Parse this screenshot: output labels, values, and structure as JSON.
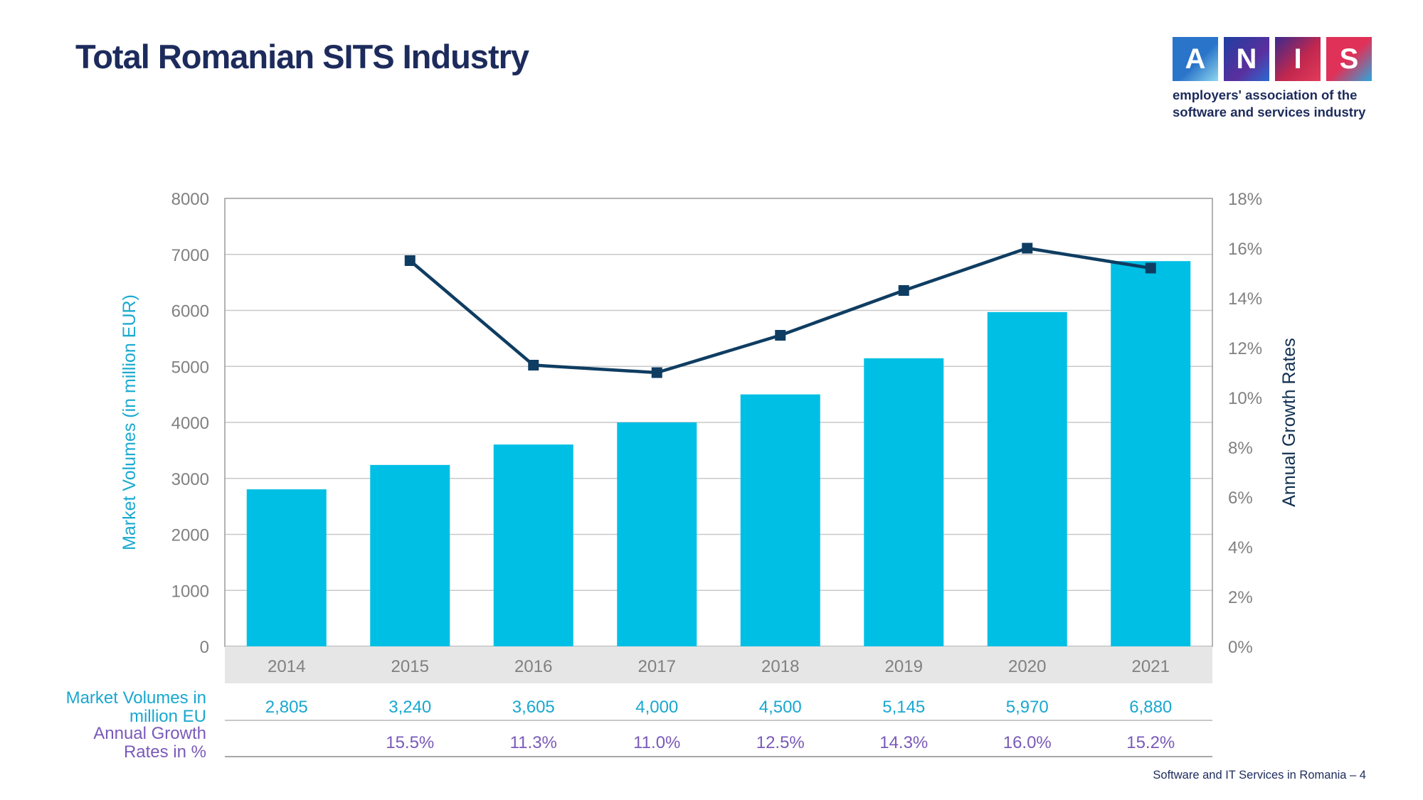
{
  "page": {
    "title": "Total Romanian SITS Industry",
    "footer": "Software and IT Services in Romania – 4"
  },
  "logo": {
    "letters": [
      "A",
      "N",
      "I",
      "S"
    ],
    "tagline_line1": "employers' association of the",
    "tagline_line2": "software and services industry"
  },
  "colors": {
    "bar": "#00bfe4",
    "line": "#0f3d62",
    "title": "#1d2b5c",
    "left_axis_label": "#1aaad0",
    "right_axis_label": "#0f2e4f",
    "table_volume_text": "#19a7d0",
    "table_growth_text": "#7a5ab8",
    "grid": "#c9c9c9",
    "tick_text": "#808080",
    "category_band": "#e6e6e6"
  },
  "chart_data": {
    "type": "bar",
    "categories": [
      "2014",
      "2015",
      "2016",
      "2017",
      "2018",
      "2019",
      "2020",
      "2021"
    ],
    "series": [
      {
        "kind": "bar",
        "axis": "left",
        "values": [
          2805,
          3240,
          3605,
          4000,
          4500,
          5145,
          5970,
          6880
        ]
      },
      {
        "kind": "line",
        "axis": "right",
        "values": [
          null,
          15.5,
          11.3,
          11.0,
          12.5,
          14.3,
          16.0,
          15.2
        ]
      }
    ],
    "y_left": {
      "label": "Market Volumes (in million EUR)",
      "range": [
        0,
        8000
      ],
      "ticks": [
        "0",
        "1000",
        "2000",
        "3000",
        "4000",
        "5000",
        "6000",
        "7000",
        "8000"
      ]
    },
    "y_right": {
      "label": "Annual Growth Rates",
      "range": [
        0,
        18
      ],
      "ticks": [
        "0%",
        "2%",
        "4%",
        "6%",
        "8%",
        "10%",
        "12%",
        "14%",
        "16%",
        "18%"
      ]
    },
    "grid": true,
    "data_table": {
      "rows": [
        {
          "label_line1": "Market Volumes in",
          "label_line2": "million EU",
          "values": [
            "2,805",
            "3,240",
            "3,605",
            "4,000",
            "4,500",
            "5,145",
            "5,970",
            "6,880"
          ]
        },
        {
          "label_line1": "Annual Growth",
          "label_line2": "Rates in %",
          "values": [
            "",
            "15.5%",
            "11.3%",
            "11.0%",
            "12.5%",
            "14.3%",
            "16.0%",
            "15.2%"
          ]
        }
      ]
    }
  }
}
